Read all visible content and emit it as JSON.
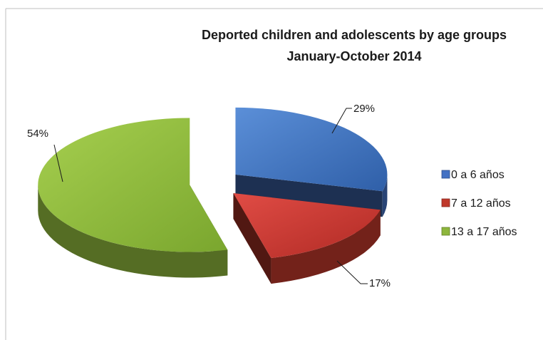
{
  "chart_data": {
    "type": "pie",
    "style": "3d-exploded",
    "title": "Deported children and adolescents by age groups",
    "subtitle": "January-October 2014",
    "categories": [
      "0 a 6 años",
      "7 a 12 años",
      "13 a 17 años"
    ],
    "values": [
      29,
      17,
      54
    ],
    "data_labels": [
      "29%",
      "17%",
      "54%"
    ],
    "colors": [
      "#4472C4",
      "#C0392B",
      "#8DB63C"
    ],
    "legend_position": "right"
  }
}
